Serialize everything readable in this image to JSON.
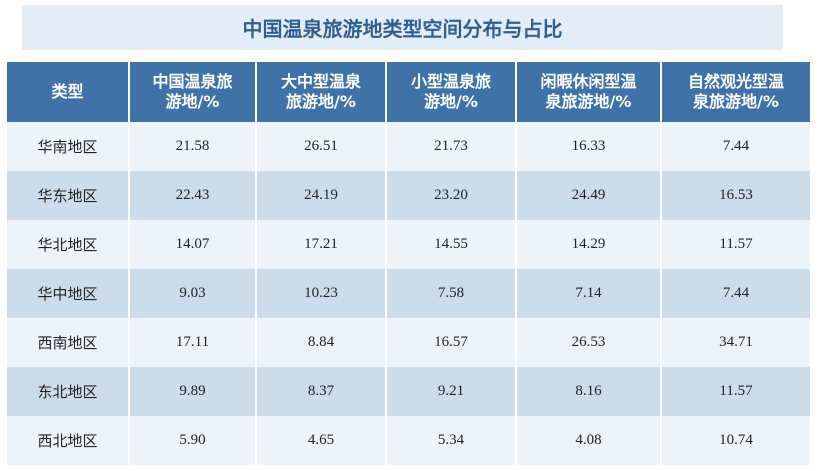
{
  "title": "中国温泉旅游地类型空间分布与占比",
  "table": {
    "header": [
      "类型",
      "中国温泉旅\n游地/%",
      "大中型温泉\n旅游地/%",
      "小型温泉旅\n游地/%",
      "闲暇休闲型温\n泉旅游地/%",
      "自然观光型温\n泉旅游地/%"
    ],
    "rows": [
      [
        "华南地区",
        "21.58",
        "26.51",
        "21.73",
        "16.33",
        "7.44"
      ],
      [
        "华东地区",
        "22.43",
        "24.19",
        "23.20",
        "24.49",
        "16.53"
      ],
      [
        "华北地区",
        "14.07",
        "17.21",
        "14.55",
        "14.29",
        "11.57"
      ],
      [
        "华中地区",
        "9.03",
        "10.23",
        "7.58",
        "7.14",
        "7.44"
      ],
      [
        "西南地区",
        "17.11",
        "8.84",
        "16.57",
        "26.53",
        "34.71"
      ],
      [
        "东北地区",
        "9.89",
        "8.37",
        "9.21",
        "8.16",
        "11.57"
      ],
      [
        "西北地区",
        "5.90",
        "4.65",
        "5.34",
        "4.08",
        "10.74"
      ]
    ]
  }
}
